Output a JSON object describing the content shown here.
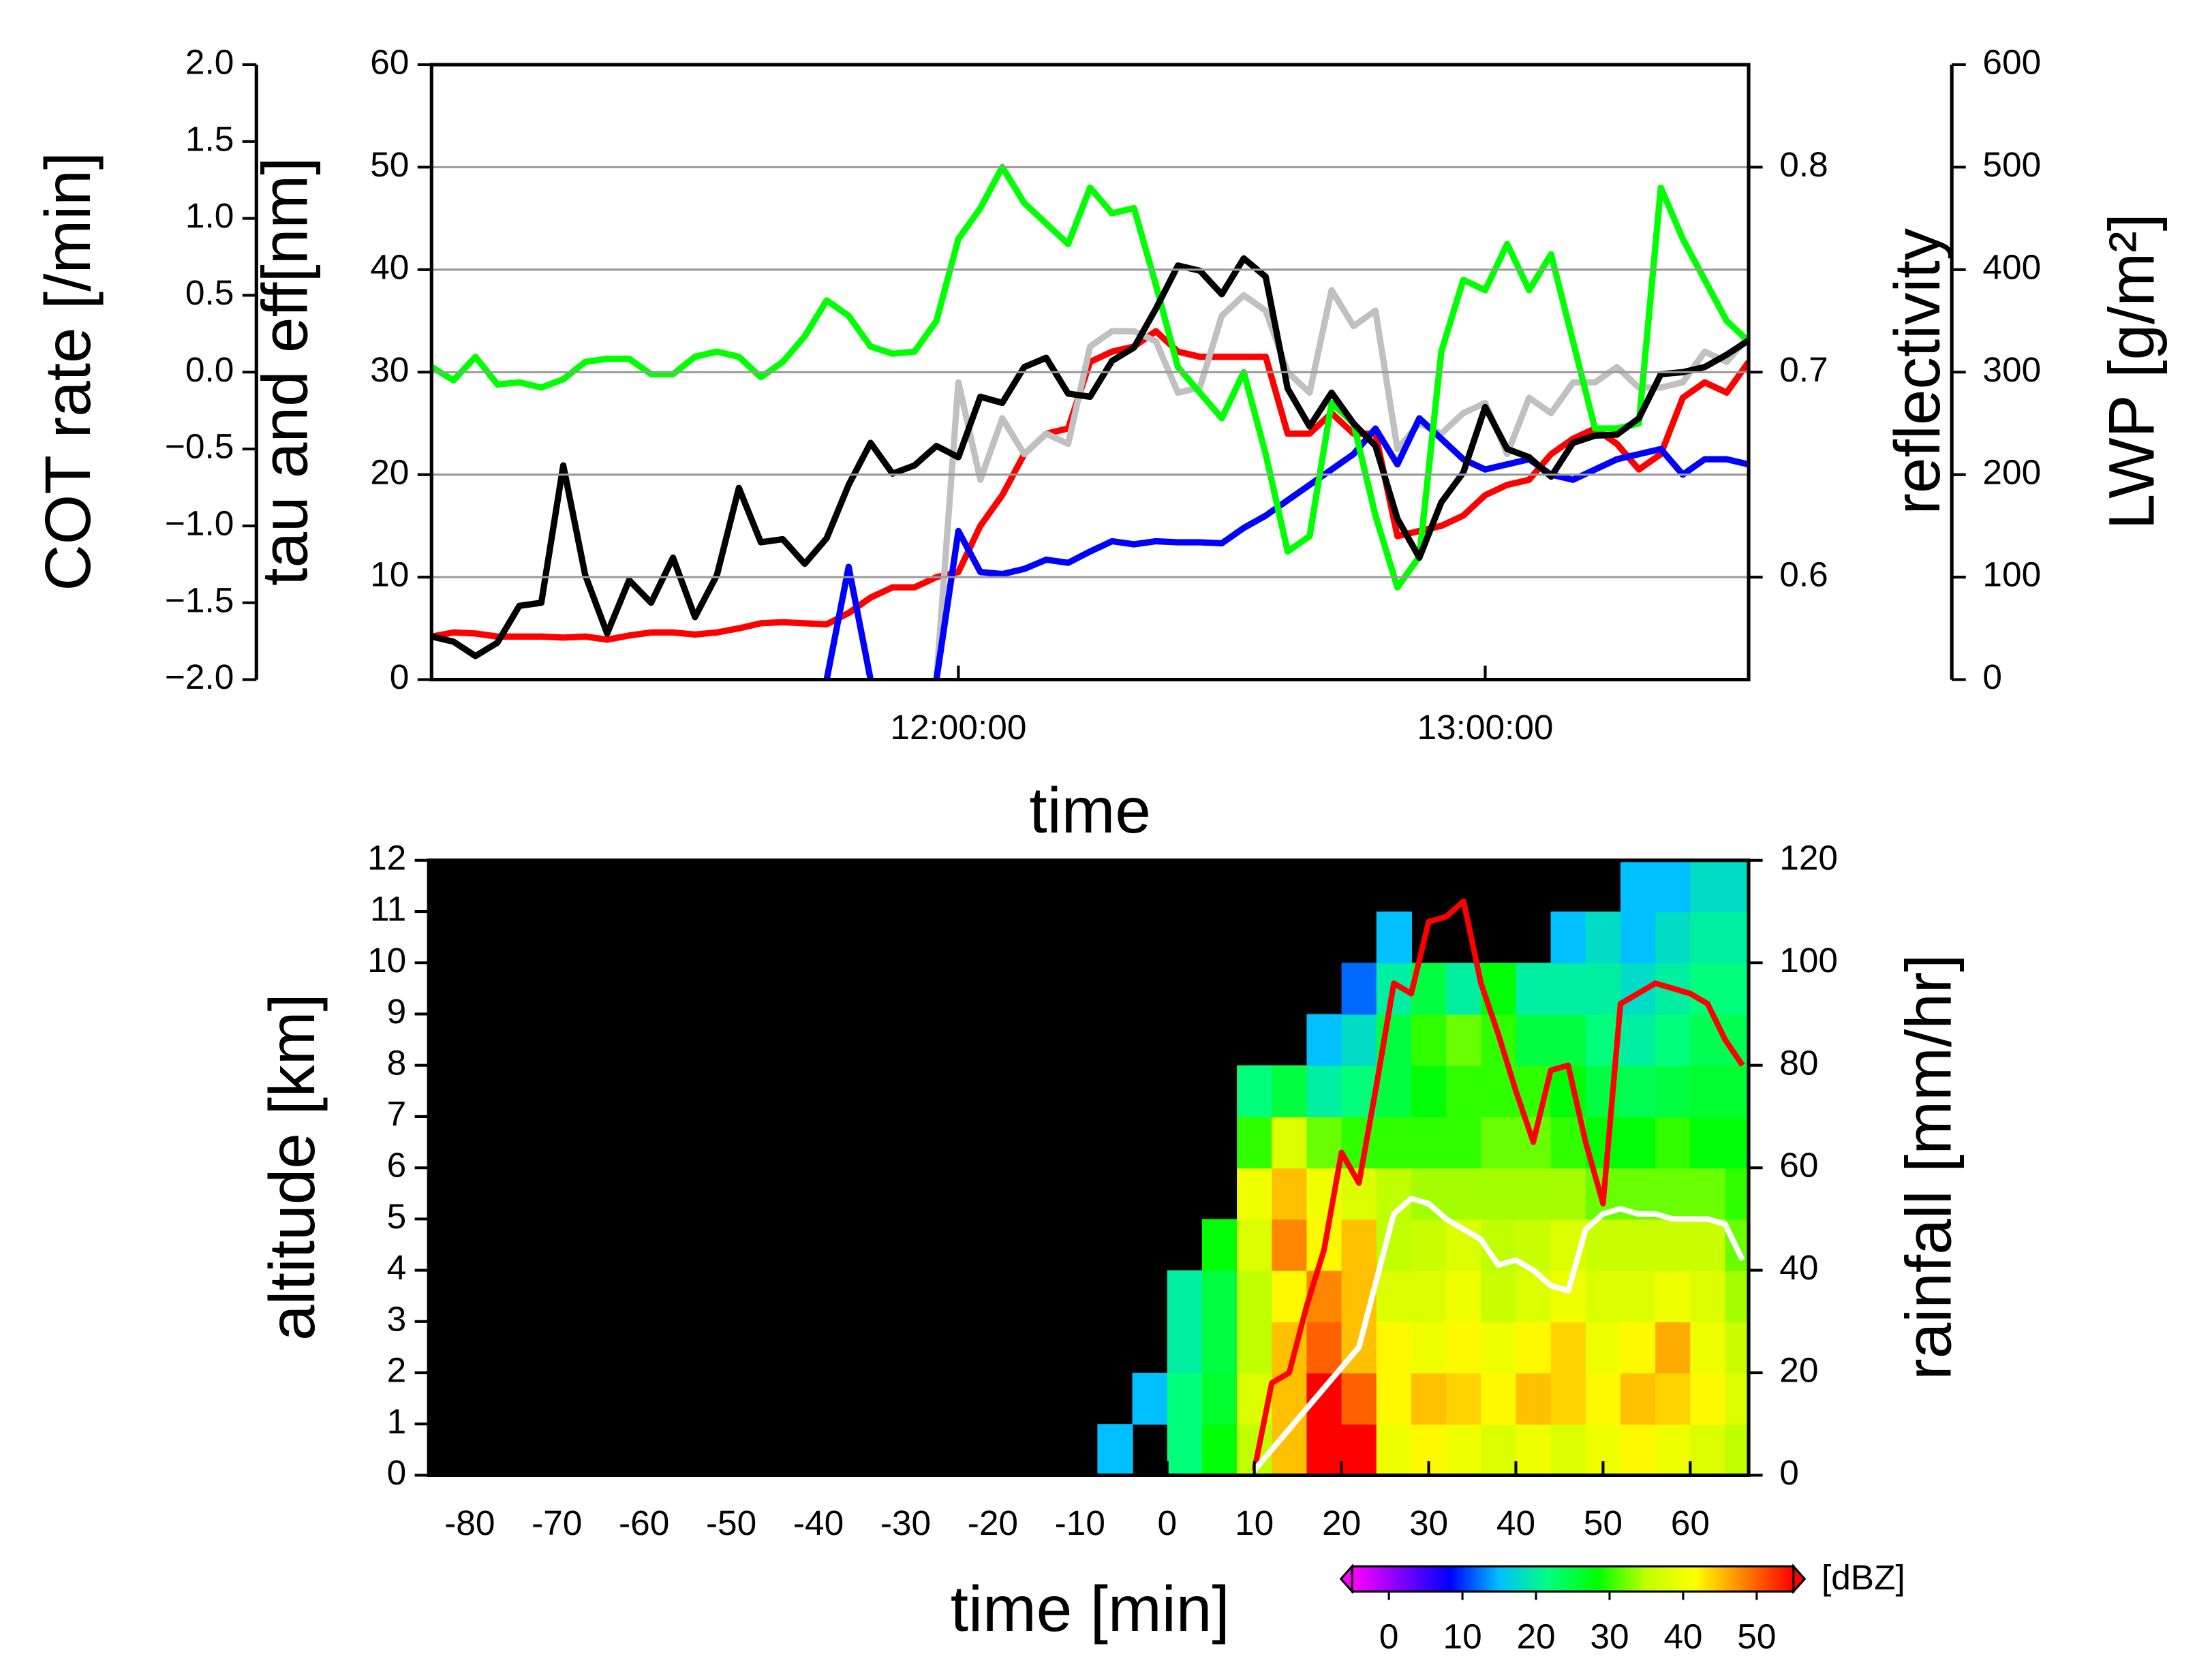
{
  "chart_data": [
    {
      "type": "line",
      "x": [
        660,
        662.5,
        665,
        667.5,
        670,
        672.5,
        675,
        677.5,
        680,
        682.5,
        685,
        687.5,
        690,
        692.5,
        695,
        697.5,
        700,
        702.5,
        705,
        707.5,
        710,
        712.5,
        715,
        717.5,
        720,
        722.5,
        725,
        727.5,
        730,
        732.5,
        735,
        737.5,
        740,
        742.5,
        745,
        747.5,
        750,
        752.5,
        755,
        757.5,
        760,
        762.5,
        765,
        767.5,
        770,
        772.5,
        775,
        777.5,
        780,
        782.5,
        785,
        787.5,
        790,
        792.5,
        795,
        797.5,
        800,
        802.5,
        805,
        807.5,
        810
      ],
      "xlim": [
        660,
        810
      ],
      "xticks": [
        {
          "value": 720,
          "label": "12:00:00"
        },
        {
          "value": 780,
          "label": "13:00:00"
        }
      ],
      "xlabel": "time",
      "ylim": [
        0,
        60
      ],
      "yticks": [
        0,
        10,
        20,
        30,
        40,
        50,
        60
      ],
      "ylabel": "tau and eff[nm]",
      "y2lim": [
        0.55,
        0.85
      ],
      "y2ticks": [
        0.6,
        0.7,
        0.8
      ],
      "y2label": "reflectivity",
      "y3lim": [
        -2,
        2
      ],
      "y3ticks": [
        {
          "value": -2,
          "label": "−2.0"
        },
        {
          "value": -1.5,
          "label": "−1.5"
        },
        {
          "value": -1,
          "label": "−1.0"
        },
        {
          "value": -0.5,
          "label": "−0.5"
        },
        {
          "value": 0,
          "label": "0.0"
        },
        {
          "value": 0.5,
          "label": "0.5"
        },
        {
          "value": 1,
          "label": "1.0"
        },
        {
          "value": 1.5,
          "label": "1.5"
        },
        {
          "value": 2,
          "label": "2.0"
        }
      ],
      "y3label": "COT rate [/min]",
      "y4lim": [
        0,
        600
      ],
      "y4ticks": [
        0,
        100,
        200,
        300,
        400,
        500,
        600
      ],
      "y4label": "LWP [g/m²]",
      "grid": true,
      "series": [
        {
          "color": "#ff0000",
          "values": [
            4.2,
            4.6,
            4.5,
            4.2,
            4.2,
            4.2,
            4.1,
            4.2,
            3.9,
            4.3,
            4.6,
            4.6,
            4.4,
            4.6,
            5.0,
            5.5,
            5.6,
            5.5,
            5.4,
            6.5,
            8,
            9,
            9,
            10,
            10.5,
            15,
            18,
            22,
            24,
            24.5,
            31,
            32,
            32.5,
            34,
            32,
            31.5,
            31.5,
            31.5,
            31.5,
            24,
            24,
            26,
            24,
            24,
            14,
            14.5,
            15,
            16,
            18,
            19,
            19.5,
            22,
            23.5,
            24.5,
            23,
            20.5,
            22,
            27.5,
            29,
            28,
            31
          ]
        },
        {
          "color": "#c0c0c0",
          "values": [
            null,
            null,
            null,
            null,
            null,
            null,
            null,
            null,
            null,
            null,
            null,
            null,
            null,
            null,
            null,
            null,
            null,
            null,
            null,
            null,
            null,
            null,
            null,
            0,
            29,
            19.5,
            25.5,
            22,
            24,
            23,
            32.5,
            34,
            34,
            33,
            28,
            28.5,
            35.5,
            37.5,
            36,
            30,
            28,
            38,
            34.5,
            36,
            22.5,
            25,
            24,
            26,
            27,
            22,
            27.5,
            26,
            29,
            29,
            30.5,
            28.5,
            28.5,
            29,
            32,
            31,
            33.5
          ]
        },
        {
          "color": "#0000ff",
          "values": [
            null,
            null,
            null,
            null,
            null,
            null,
            null,
            null,
            null,
            null,
            null,
            null,
            null,
            null,
            null,
            null,
            null,
            null,
            0,
            11,
            0,
            null,
            null,
            0,
            14.5,
            10.5,
            10.3,
            10.8,
            11.7,
            11.4,
            12.5,
            13.5,
            13.2,
            13.5,
            13.4,
            13.4,
            13.3,
            14.8,
            16,
            17.5,
            19,
            20.5,
            22,
            24.5,
            21,
            25.5,
            23.5,
            21.5,
            20.5,
            21,
            21.5,
            20,
            19.5,
            20.5,
            21.5,
            22,
            22.5,
            20,
            21.5,
            21.5,
            21
          ]
        },
        {
          "color": "#00ff00",
          "values": [
            30.5,
            29.2,
            31.5,
            28.8,
            29,
            28.5,
            29.3,
            31,
            31.3,
            31.3,
            29.8,
            29.8,
            31.5,
            32,
            31.5,
            29.5,
            31,
            33.5,
            37,
            35.5,
            32.5,
            31.8,
            32,
            35,
            43,
            46,
            50,
            46.5,
            44.5,
            42.5,
            48,
            45.5,
            46,
            38.5,
            30.5,
            28,
            25.5,
            30,
            22,
            12.5,
            14,
            27,
            25,
            16,
            9,
            12,
            32,
            39,
            38,
            42.5,
            38,
            41.5,
            33,
            24.5,
            24.5,
            25,
            48,
            43,
            39,
            35,
            33
          ]
        },
        {
          "color": "#000000",
          "values": [
            4.2,
            3.7,
            2.3,
            3.6,
            7.2,
            7.5,
            20.9,
            10.2,
            4.5,
            9.7,
            7.5,
            11.9,
            6.1,
            10.2,
            18.7,
            13.4,
            13.7,
            11.3,
            13.8,
            19,
            23.1,
            20.1,
            20.9,
            22.8,
            21.7,
            27.6,
            27,
            30.5,
            31.4,
            27.9,
            27.6,
            31.1,
            32.4,
            36.2,
            40.4,
            39.9,
            37.6,
            41.1,
            39.3,
            28.4,
            24.7,
            28,
            25,
            22.8,
            15.7,
            11.9,
            17.3,
            20.2,
            26.6,
            22.5,
            21.7,
            19.8,
            23.1,
            23.8,
            23.9,
            25.5,
            29.8,
            30,
            30.5,
            31.7,
            33.1
          ]
        }
      ]
    },
    {
      "type": "heatmap",
      "xbins": [
        -8,
        -4,
        0,
        4,
        8,
        12,
        16,
        20,
        24,
        28,
        32,
        36,
        40,
        44,
        48,
        52,
        56,
        60,
        64,
        68
      ],
      "ybins": [
        0,
        1,
        2,
        3,
        4,
        5,
        6,
        7,
        8,
        9,
        10,
        11,
        12
      ],
      "z": [
        [
          15,
          null,
          null,
          null,
          null,
          null,
          null,
          null,
          null,
          null,
          null,
          null
        ],
        [
          null,
          15,
          null,
          null,
          null,
          null,
          null,
          null,
          null,
          null,
          null,
          null
        ],
        [
          22,
          22,
          20,
          20,
          null,
          null,
          null,
          null,
          null,
          null,
          null,
          null
        ],
        [
          28,
          26,
          25,
          25,
          28,
          null,
          null,
          null,
          null,
          null,
          null,
          null
        ],
        [
          35,
          38,
          35,
          35,
          38,
          40,
          30,
          22,
          null,
          null,
          null,
          null
        ],
        [
          45,
          45,
          45,
          42,
          48,
          45,
          38,
          25,
          null,
          null,
          null,
          null
        ],
        [
          55,
          55,
          50,
          48,
          42,
          40,
          32,
          20,
          15,
          null,
          null,
          null
        ],
        [
          55,
          50,
          45,
          45,
          45,
          38,
          30,
          22,
          18,
          12,
          null,
          null
        ],
        [
          40,
          42,
          42,
          38,
          35,
          35,
          30,
          25,
          25,
          20,
          15,
          null
        ],
        [
          42,
          45,
          40,
          38,
          36,
          34,
          30,
          28,
          30,
          25,
          null,
          null
        ],
        [
          40,
          44,
          42,
          40,
          38,
          34,
          30,
          30,
          32,
          20,
          null,
          null
        ],
        [
          38,
          42,
          40,
          36,
          35,
          34,
          32,
          30,
          30,
          28,
          null,
          null
        ],
        [
          40,
          45,
          42,
          38,
          36,
          34,
          32,
          30,
          25,
          20,
          null,
          null
        ],
        [
          38,
          44,
          44,
          40,
          38,
          34,
          30,
          28,
          25,
          20,
          15,
          null
        ],
        [
          40,
          42,
          40,
          38,
          36,
          32,
          28,
          25,
          22,
          20,
          18,
          null
        ],
        [
          42,
          45,
          42,
          38,
          36,
          32,
          28,
          24,
          20,
          18,
          15,
          15
        ],
        [
          40,
          44,
          46,
          40,
          36,
          32,
          30,
          25,
          22,
          20,
          18,
          15
        ],
        [
          38,
          42,
          40,
          38,
          36,
          32,
          28,
          26,
          24,
          22,
          20,
          18
        ],
        [
          35,
          38,
          36,
          34,
          32,
          30,
          28,
          26,
          24,
          22,
          20,
          18
        ]
      ],
      "xlim": [
        -84.7,
        66.7
      ],
      "xticks": [
        -80,
        -70,
        -60,
        -50,
        -40,
        -30,
        -20,
        -10,
        0,
        10,
        20,
        30,
        40,
        50,
        60
      ],
      "xlabel": "time [min]",
      "ylim": [
        0,
        12
      ],
      "yticks": [
        0,
        1,
        2,
        3,
        4,
        5,
        6,
        7,
        8,
        9,
        10,
        11,
        12
      ],
      "ylabel": "altitude [km]",
      "y2lim": [
        0,
        120
      ],
      "y2ticks": [
        0,
        20,
        40,
        60,
        80,
        100,
        120
      ],
      "y2label": "rainfall [mm/hr]",
      "x": [
        10,
        12,
        14,
        16,
        18,
        20,
        22,
        24,
        26,
        28,
        30,
        32,
        34,
        36,
        38,
        40,
        42,
        44,
        46,
        48,
        50,
        52,
        54,
        56,
        58,
        60,
        62,
        64,
        66
      ],
      "series": [
        {
          "color": "#ff0000",
          "values": [
            0.1,
            1.8,
            2.0,
            3.3,
            4.4,
            6.3,
            5.7,
            7.6,
            9.6,
            9.4,
            10.8,
            10.9,
            11.2,
            9.6,
            8.6,
            7.5,
            6.5,
            7.9,
            8.0,
            6.5,
            5.3,
            9.2,
            9.4,
            9.6,
            9.5,
            9.4,
            9.2,
            8.5,
            8.0
          ]
        },
        {
          "color": "#ffffff",
          "axis": "y2",
          "values": [
            1,
            5,
            9,
            13,
            17,
            21,
            25,
            38,
            51,
            54,
            53,
            50,
            48,
            46,
            41,
            42,
            40,
            37,
            36,
            48,
            51,
            52,
            51,
            51,
            50,
            50,
            50,
            49,
            42
          ]
        }
      ],
      "colorbar": {
        "clim": [
          -5,
          55
        ],
        "ticks": [
          0,
          10,
          20,
          30,
          40,
          50
        ],
        "label": "[dBZ]",
        "colors": [
          "#ff00ff",
          "#8000ff",
          "#0000ff",
          "#00c0ff",
          "#00ff80",
          "#00ff00",
          "#c0ff00",
          "#ffff00",
          "#ff8000",
          "#ff0000"
        ]
      }
    }
  ]
}
